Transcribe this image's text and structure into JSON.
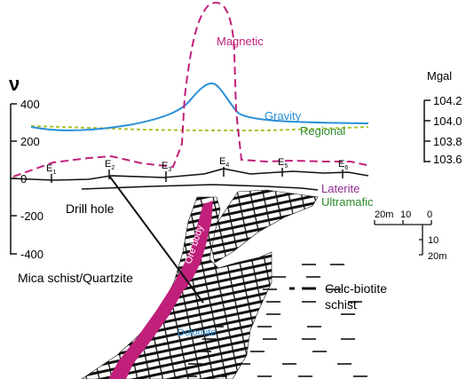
{
  "labels": {
    "magnetic": "Magnetic",
    "gravity": "Gravity",
    "regional": "Regional",
    "laterite": "Laterite",
    "ultramafic": "Ultramafic",
    "drill_hole": "Drill hole",
    "ore_body": "Ore body",
    "mica_schist": "Mica schist/Quartzite",
    "calc_biotite_1": "Calc-biotite",
    "calc_biotite_2": "schist",
    "dolomite": "Dolomite",
    "mgal": "Mgal",
    "north_symbol": "ν"
  },
  "left_axis_ticks": [
    "400",
    "200",
    "0",
    "-200",
    "-400"
  ],
  "right_axis_ticks": [
    "104.2",
    "104.0",
    "103.8",
    "103.6"
  ],
  "stations": [
    {
      "letter": "E",
      "sub": "1"
    },
    {
      "letter": "E",
      "sub": "2"
    },
    {
      "letter": "E",
      "sub": "3"
    },
    {
      "letter": "E",
      "sub": "4"
    },
    {
      "letter": "E",
      "sub": "5"
    },
    {
      "letter": "E",
      "sub": "6"
    }
  ],
  "scale_bar": {
    "horizontal": [
      "20m",
      "10",
      "0"
    ],
    "vertical": [
      "10",
      "20m"
    ]
  },
  "colors": {
    "magnetic": "#c0207a",
    "gravity": "#2a8fd6",
    "regional": "#a8c430",
    "laterite_label": "#8b2a8b",
    "ultramafic_label": "#2e8b2e",
    "ore_body": "#c0207a",
    "dolomite_label": "#2a8fd6"
  }
}
